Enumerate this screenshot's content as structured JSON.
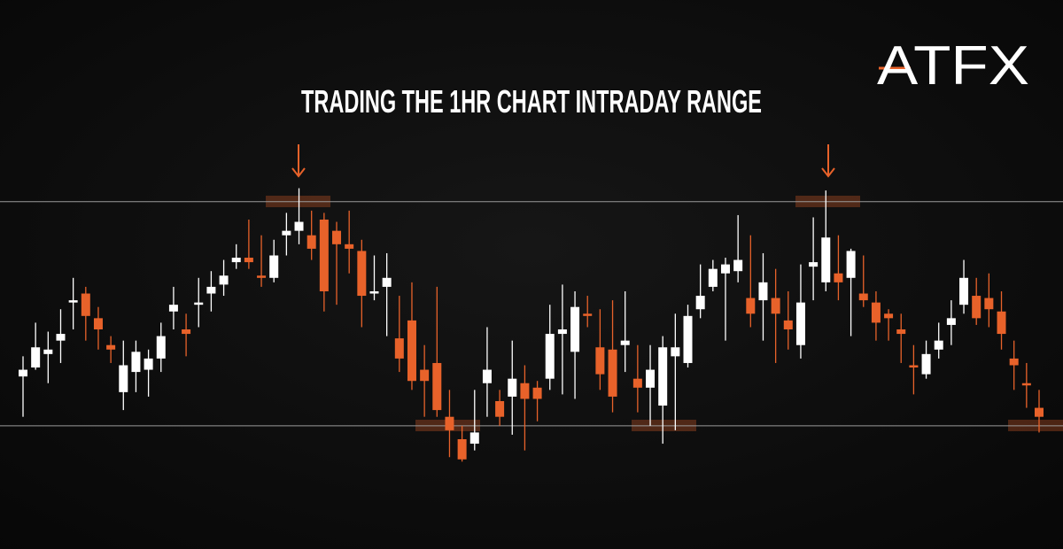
{
  "chart_data": {
    "type": "candlestick",
    "title": "TRADING THE 1HR CHART INTRADAY RANGE",
    "logo": "ATFX",
    "ylim": [
      -55,
      190
    ],
    "up_color": "#ffffff",
    "down_color": "#e8622a",
    "levels": [
      100,
      0
    ],
    "level_color": "#9a9a9a",
    "open": [
      22,
      26,
      32,
      38,
      55,
      59,
      48,
      36,
      15,
      24,
      25,
      30,
      51,
      43,
      54,
      59,
      63,
      73,
      75,
      67,
      66,
      85,
      87,
      85,
      92,
      87,
      81,
      78,
      59,
      62,
      39,
      47,
      25,
      28,
      4,
      -6,
      -8,
      19,
      11,
      13,
      19,
      17,
      21,
      41,
      33,
      50,
      35,
      34,
      36,
      21,
      17,
      9,
      31,
      28,
      52,
      62,
      68,
      69,
      57,
      56,
      57,
      47,
      36,
      71,
      64,
      68,
      66,
      59,
      55,
      50,
      43,
      27,
      23,
      34,
      45,
      54,
      58,
      57,
      51,
      30,
      19,
      8
    ],
    "high": [
      31,
      46,
      42,
      52,
      66,
      62,
      53,
      40,
      38,
      38,
      34,
      46,
      62,
      50,
      66,
      69,
      74,
      81,
      92,
      85,
      83,
      95,
      106,
      96,
      95,
      91,
      96,
      83,
      76,
      77,
      58,
      64,
      36,
      62,
      16,
      0,
      16,
      44,
      16,
      38,
      27,
      20,
      54,
      63,
      60,
      58,
      52,
      56,
      60,
      36,
      36,
      40,
      50,
      54,
      72,
      74,
      75,
      94,
      85,
      77,
      70,
      60,
      72,
      93,
      105,
      85,
      79,
      76,
      60,
      52,
      50,
      36,
      38,
      46,
      56,
      74,
      66,
      68,
      60,
      38,
      28,
      16
    ],
    "low": [
      4,
      25,
      19,
      28,
      43,
      38,
      34,
      28,
      7,
      15,
      13,
      24,
      43,
      31,
      44,
      51,
      58,
      70,
      70,
      62,
      64,
      76,
      81,
      74,
      51,
      54,
      68,
      44,
      56,
      40,
      24,
      16,
      4,
      4,
      -14,
      -16,
      -11,
      4,
      0,
      -4,
      -11,
      2,
      16,
      14,
      12,
      44,
      16,
      6,
      24,
      6,
      0,
      -8,
      -2,
      26,
      48,
      60,
      38,
      64,
      44,
      38,
      28,
      34,
      30,
      56,
      60,
      56,
      40,
      53,
      38,
      38,
      28,
      14,
      21,
      30,
      36,
      50,
      45,
      44,
      34,
      16,
      8,
      -3
    ],
    "close": [
      25,
      35,
      34,
      41,
      56,
      49,
      43,
      34,
      27,
      33,
      30,
      40,
      54,
      41,
      55,
      62,
      67,
      75,
      73,
      66,
      76,
      87,
      91,
      79,
      60,
      81,
      79,
      58,
      60,
      66,
      30,
      20,
      20,
      7,
      -2,
      -15,
      -3,
      25,
      4,
      21,
      12,
      12,
      41,
      43,
      53,
      49,
      23,
      13,
      38,
      17,
      25,
      35,
      35,
      49,
      58,
      70,
      72,
      74,
      50,
      64,
      50,
      43,
      55,
      73,
      84,
      64,
      78,
      56,
      46,
      48,
      41,
      26,
      32,
      38,
      48,
      66,
      48,
      52,
      41,
      27,
      18,
      4
    ]
  }
}
